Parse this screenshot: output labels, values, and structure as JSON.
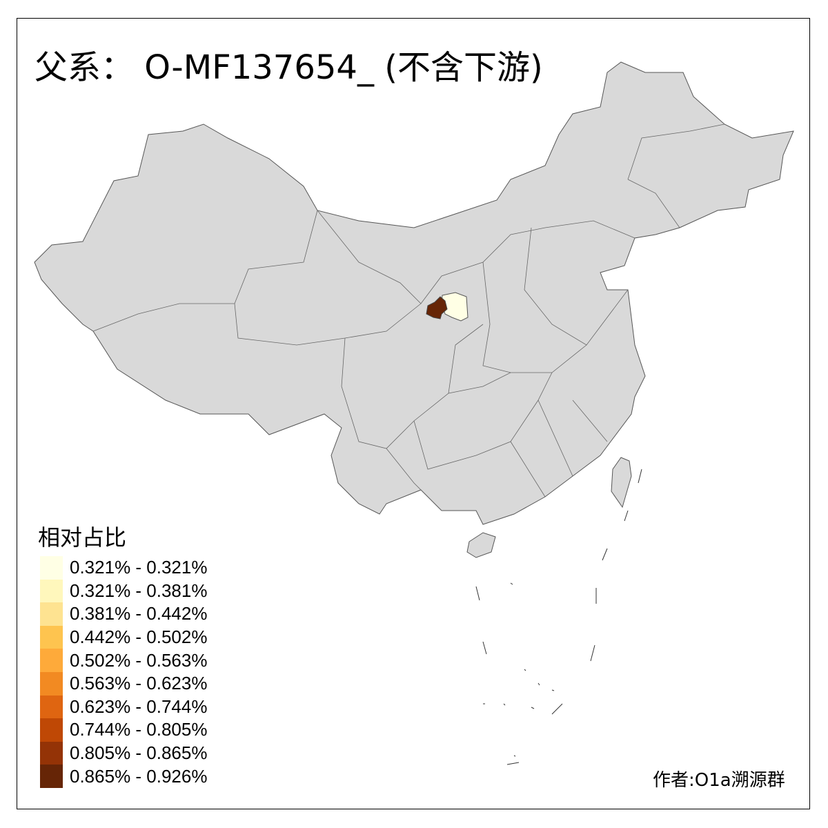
{
  "title": "父系： O-MF137654_ (不含下游)",
  "legend": {
    "title": "相对占比",
    "classes": [
      {
        "label": "0.321% - 0.321%",
        "color": "#FFFFE5"
      },
      {
        "label": "0.321% - 0.381%",
        "color": "#FFF7BC"
      },
      {
        "label": "0.381% - 0.442%",
        "color": "#FEE391"
      },
      {
        "label": "0.442% - 0.502%",
        "color": "#FEC44F"
      },
      {
        "label": "0.502% - 0.563%",
        "color": "#FEAA3A"
      },
      {
        "label": "0.563% - 0.623%",
        "color": "#F28A22"
      },
      {
        "label": "0.623% - 0.744%",
        "color": "#DF6511"
      },
      {
        "label": "0.744% - 0.805%",
        "color": "#BF4805"
      },
      {
        "label": "0.805% - 0.865%",
        "color": "#943306"
      },
      {
        "label": "0.865% - 0.926%",
        "color": "#662506"
      }
    ]
  },
  "map": {
    "base_color": "#D9D9D9",
    "highlighted_regions": [
      {
        "class_index": 9,
        "color": "#662506"
      },
      {
        "class_index": 0,
        "color": "#FFFFE5"
      }
    ]
  },
  "author": "作者:O1a溯源群"
}
